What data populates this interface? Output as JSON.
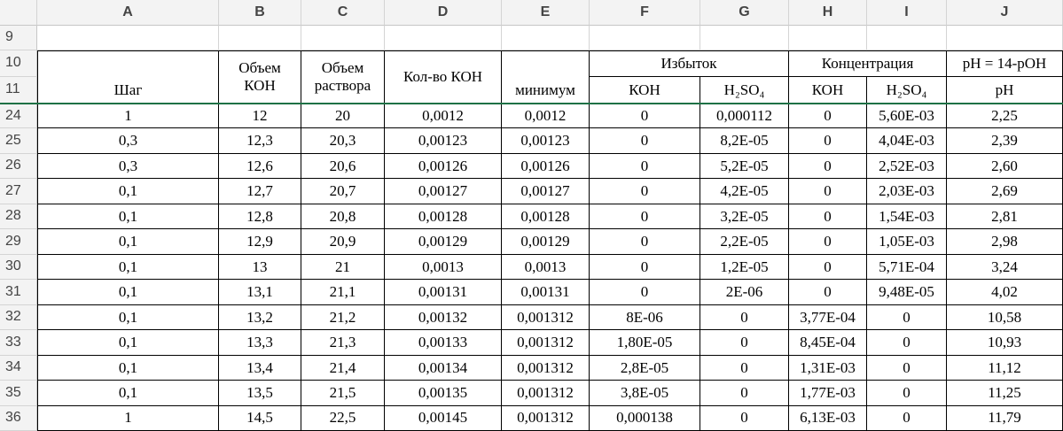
{
  "column_headers": [
    "A",
    "B",
    "C",
    "D",
    "E",
    "F",
    "G",
    "H",
    "I",
    "J"
  ],
  "row_numbers": [
    "9",
    "10",
    "11",
    "24",
    "25",
    "26",
    "27",
    "28",
    "29",
    "30",
    "31",
    "32",
    "33",
    "34",
    "35",
    "36"
  ],
  "header": {
    "A": "Шаг",
    "B": "Объем КОН",
    "C": "Объем раствора",
    "D": "Кол-во КОН",
    "E": "минимум",
    "FG": "Избыток",
    "HI": "Концентрация",
    "J10": "pH = 14-pOH",
    "F": "КОН",
    "G": "H₂SO₄",
    "H": "КОН",
    "I": "H₂SO₄",
    "J": "pH"
  },
  "rows": [
    [
      "1",
      "12",
      "20",
      "0,0012",
      "0,0012",
      "0",
      "0,000112",
      "0",
      "5,60E-03",
      "2,25"
    ],
    [
      "0,3",
      "12,3",
      "20,3",
      "0,00123",
      "0,00123",
      "0",
      "8,2E-05",
      "0",
      "4,04E-03",
      "2,39"
    ],
    [
      "0,3",
      "12,6",
      "20,6",
      "0,00126",
      "0,00126",
      "0",
      "5,2E-05",
      "0",
      "2,52E-03",
      "2,60"
    ],
    [
      "0,1",
      "12,7",
      "20,7",
      "0,00127",
      "0,00127",
      "0",
      "4,2E-05",
      "0",
      "2,03E-03",
      "2,69"
    ],
    [
      "0,1",
      "12,8",
      "20,8",
      "0,00128",
      "0,00128",
      "0",
      "3,2E-05",
      "0",
      "1,54E-03",
      "2,81"
    ],
    [
      "0,1",
      "12,9",
      "20,9",
      "0,00129",
      "0,00129",
      "0",
      "2,2E-05",
      "0",
      "1,05E-03",
      "2,98"
    ],
    [
      "0,1",
      "13",
      "21",
      "0,0013",
      "0,0013",
      "0",
      "1,2E-05",
      "0",
      "5,71E-04",
      "3,24"
    ],
    [
      "0,1",
      "13,1",
      "21,1",
      "0,00131",
      "0,00131",
      "0",
      "2E-06",
      "0",
      "9,48E-05",
      "4,02"
    ],
    [
      "0,1",
      "13,2",
      "21,2",
      "0,00132",
      "0,001312",
      "8E-06",
      "0",
      "3,77E-04",
      "0",
      "10,58"
    ],
    [
      "0,1",
      "13,3",
      "21,3",
      "0,00133",
      "0,001312",
      "1,80E-05",
      "0",
      "8,45E-04",
      "0",
      "10,93"
    ],
    [
      "0,1",
      "13,4",
      "21,4",
      "0,00134",
      "0,001312",
      "2,8E-05",
      "0",
      "1,31E-03",
      "0",
      "11,12"
    ],
    [
      "0,1",
      "13,5",
      "21,5",
      "0,00135",
      "0,001312",
      "3,8E-05",
      "0",
      "1,77E-03",
      "0",
      "11,25"
    ],
    [
      "1",
      "14,5",
      "22,5",
      "0,00145",
      "0,001312",
      "0,000138",
      "0",
      "6,13E-03",
      "0",
      "11,79"
    ]
  ]
}
